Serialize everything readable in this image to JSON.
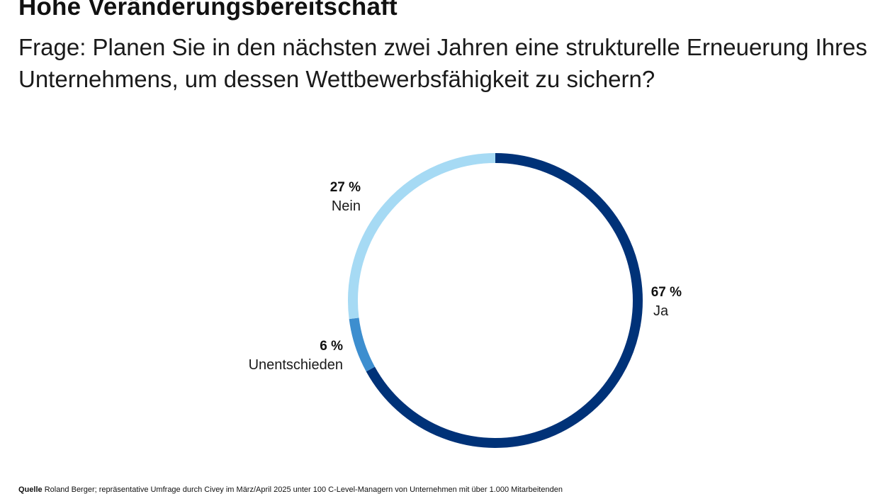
{
  "header": {
    "title": "Hohe Veränderungsbereitschaft",
    "subtitle": "Frage: Planen Sie in den nächsten zwei Jahren eine strukturelle Erneuerung Ihres Unternehmens, um dessen Wettbewerbsfähigkeit zu sichern?"
  },
  "chart_data": {
    "type": "pie",
    "variant": "donut",
    "slices": [
      {
        "label": "Ja",
        "value": 67,
        "value_label": "67 %",
        "color": "#003278"
      },
      {
        "label": "Unentschieden",
        "value": 6,
        "value_label": "6 %",
        "color": "#3D8ECF"
      },
      {
        "label": "Nein",
        "value": 27,
        "value_label": "27 %",
        "color": "#A6DAF4"
      }
    ],
    "unit": "%"
  },
  "footer": {
    "source_label": "Quelle",
    "source_text": "Roland Berger; repräsentative Umfrage durch Civey im März/April 2025 unter 100 C-Level-Managern von Unternehmen mit über 1.000 Mitarbeitenden"
  }
}
